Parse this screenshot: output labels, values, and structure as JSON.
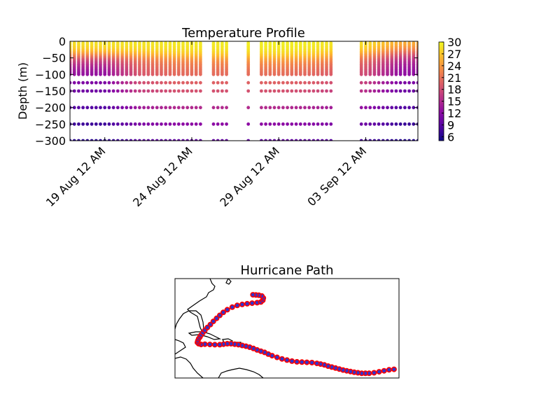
{
  "chart_data": [
    {
      "type": "scatter",
      "title": "Temperature Profile",
      "xlabel": "",
      "ylabel": "Depth (m)",
      "x_range": [
        "2017-08-17",
        "2017-09-06"
      ],
      "ylim": [
        -300,
        0
      ],
      "y_ticks": [
        0,
        -50,
        -100,
        -150,
        -200,
        -250,
        -300
      ],
      "x_ticks": [
        {
          "date": "2017-08-19",
          "label": "19 Aug 12 AM"
        },
        {
          "date": "2017-08-24",
          "label": "24 Aug 12 AM"
        },
        {
          "date": "2017-08-29",
          "label": "29 Aug 12 AM"
        },
        {
          "date": "2017-09-03",
          "label": "03 Sep 12 AM"
        }
      ],
      "colorbar": {
        "colormap": "plasma",
        "range": [
          5,
          30
        ],
        "ticks": [
          30,
          27,
          24,
          21,
          18,
          15,
          12,
          9,
          6
        ]
      },
      "profile_start": "2017-08-17",
      "profile_end": "2017-09-06",
      "profile_step_hours": 6,
      "data_gaps": [
        [
          "2017-08-24T18:00",
          "2017-08-25T06:00"
        ],
        [
          "2017-08-26T06:00",
          "2017-08-27T06:00"
        ],
        [
          "2017-08-27T12:00",
          "2017-08-28T00:00"
        ],
        [
          "2017-09-01T06:00",
          "2017-09-02T18:00"
        ]
      ],
      "depths": [
        -5,
        -10,
        -15,
        -20,
        -25,
        -30,
        -35,
        -40,
        -45,
        -50,
        -55,
        -60,
        -65,
        -70,
        -75,
        -80,
        -85,
        -90,
        -95,
        -100,
        -125,
        -150,
        -200,
        -250,
        -300
      ],
      "temperature_series": [
        {
          "x": "2017-08-17",
          "values": [
            28.5,
            28.3,
            28.0,
            27.6,
            27.0,
            26.2,
            25.0,
            23.6,
            22.0,
            20.5,
            19.0,
            17.8,
            16.8,
            15.9,
            15.2,
            14.6,
            14.1,
            13.7,
            13.3,
            13.0,
            11.5,
            10.5,
            8.7,
            7.5,
            6.4
          ]
        },
        {
          "x": "2017-08-19",
          "values": [
            28.8,
            28.6,
            28.3,
            27.9,
            27.2,
            26.3,
            25.1,
            23.5,
            21.8,
            20.2,
            18.7,
            17.5,
            16.5,
            15.7,
            15.0,
            14.4,
            13.9,
            13.5,
            13.1,
            12.8,
            11.2,
            10.3,
            8.6,
            7.4,
            6.3
          ]
        },
        {
          "x": "2017-08-21",
          "values": [
            29.0,
            28.8,
            28.6,
            28.3,
            27.9,
            27.3,
            26.5,
            25.5,
            24.4,
            23.3,
            22.3,
            21.5,
            20.9,
            20.4,
            20.0,
            19.7,
            19.4,
            19.2,
            19.0,
            18.8,
            18.0,
            16.8,
            13.8,
            11.2,
            9.0
          ]
        },
        {
          "x": "2017-08-23",
          "values": [
            29.2,
            29.0,
            28.8,
            28.6,
            28.3,
            27.9,
            27.4,
            26.7,
            25.8,
            24.8,
            23.9,
            23.1,
            22.5,
            22.0,
            21.6,
            21.3,
            21.0,
            20.8,
            20.6,
            20.4,
            19.6,
            18.4,
            15.0,
            12.2,
            9.5
          ]
        },
        {
          "x": "2017-08-29",
          "values": [
            29.6,
            29.5,
            29.3,
            29.1,
            28.9,
            28.6,
            28.2,
            27.6,
            26.9,
            26.0,
            25.1,
            24.3,
            23.6,
            23.0,
            22.5,
            22.1,
            21.7,
            21.4,
            21.1,
            20.8,
            19.8,
            18.5,
            15.2,
            12.3,
            9.6
          ]
        },
        {
          "x": "2017-08-31",
          "values": [
            29.4,
            29.2,
            29.0,
            28.8,
            28.5,
            28.1,
            27.6,
            27.0,
            26.2,
            25.3,
            24.4,
            23.6,
            22.9,
            22.3,
            21.8,
            21.4,
            21.0,
            20.7,
            20.4,
            20.1,
            19.1,
            17.8,
            14.5,
            11.8,
            9.3
          ]
        },
        {
          "x": "2017-09-03",
          "values": [
            28.4,
            28.2,
            27.9,
            27.5,
            27.0,
            26.3,
            25.4,
            24.3,
            23.2,
            22.2,
            21.3,
            20.6,
            20.0,
            19.5,
            19.1,
            18.8,
            18.5,
            18.2,
            18.0,
            17.8,
            16.8,
            15.5,
            12.6,
            10.2,
            7.8
          ]
        },
        {
          "x": "2017-09-05",
          "values": [
            25.5,
            25.0,
            24.4,
            23.6,
            22.7,
            21.6,
            20.4,
            19.2,
            18.0,
            17.0,
            16.1,
            15.4,
            14.8,
            14.3,
            13.9,
            13.5,
            13.2,
            12.9,
            12.7,
            12.5,
            11.1,
            10.2,
            8.5,
            7.2,
            6.1
          ]
        }
      ]
    },
    {
      "type": "map",
      "title": "Hurricane Path",
      "extent": {
        "lon": [
          -100,
          -10
        ],
        "lat": [
          5,
          45
        ]
      },
      "path_color": "#ff0000",
      "marker_face_color": "#3333cc",
      "track": [
        [
          -12.0,
          8.5
        ],
        [
          -14.0,
          8.3
        ],
        [
          -16.0,
          7.9
        ],
        [
          -18.0,
          7.5
        ],
        [
          -20.0,
          7.1
        ],
        [
          -22.0,
          6.9
        ],
        [
          -23.5,
          6.9
        ],
        [
          -25.0,
          6.9
        ],
        [
          -26.5,
          7.1
        ],
        [
          -28.0,
          7.3
        ],
        [
          -29.5,
          7.6
        ],
        [
          -31.0,
          7.9
        ],
        [
          -32.5,
          8.2
        ],
        [
          -34.0,
          8.6
        ],
        [
          -35.5,
          9.0
        ],
        [
          -37.0,
          9.4
        ],
        [
          -38.5,
          9.8
        ],
        [
          -40.0,
          10.3
        ],
        [
          -41.5,
          10.6
        ],
        [
          -43.0,
          10.9
        ],
        [
          -45.0,
          11.2
        ],
        [
          -47.0,
          11.3
        ],
        [
          -49.0,
          11.4
        ],
        [
          -51.0,
          11.5
        ],
        [
          -53.0,
          11.8
        ],
        [
          -55.0,
          12.2
        ],
        [
          -57.0,
          12.7
        ],
        [
          -59.0,
          13.3
        ],
        [
          -61.0,
          14.0
        ],
        [
          -62.5,
          14.6
        ],
        [
          -64.0,
          15.3
        ],
        [
          -65.5,
          15.8
        ],
        [
          -67.0,
          16.3
        ],
        [
          -68.5,
          16.9
        ],
        [
          -70.0,
          17.4
        ],
        [
          -71.5,
          17.8
        ],
        [
          -73.0,
          18.1
        ],
        [
          -74.5,
          18.4
        ],
        [
          -76.0,
          18.6
        ],
        [
          -77.5,
          18.8
        ],
        [
          -79.0,
          18.8
        ],
        [
          -80.5,
          18.6
        ],
        [
          -82.0,
          18.4
        ],
        [
          -84.0,
          18.4
        ],
        [
          -86.0,
          18.5
        ],
        [
          -88.0,
          18.6
        ],
        [
          -89.5,
          18.5
        ],
        [
          -90.5,
          18.8
        ],
        [
          -91.0,
          19.3
        ],
        [
          -90.8,
          20.0
        ],
        [
          -90.5,
          20.8
        ],
        [
          -90.0,
          21.5
        ],
        [
          -89.5,
          22.3
        ],
        [
          -88.8,
          23.2
        ],
        [
          -88.0,
          24.2
        ],
        [
          -87.0,
          25.3
        ],
        [
          -85.8,
          26.5
        ],
        [
          -84.6,
          27.8
        ],
        [
          -83.3,
          29.0
        ],
        [
          -82.0,
          30.2
        ],
        [
          -80.6,
          31.4
        ],
        [
          -79.0,
          32.5
        ],
        [
          -77.0,
          33.5
        ],
        [
          -75.0,
          34.2
        ],
        [
          -73.0,
          34.6
        ],
        [
          -71.0,
          34.9
        ],
        [
          -69.0,
          35.1
        ],
        [
          -67.0,
          35.3
        ],
        [
          -65.5,
          35.6
        ],
        [
          -64.7,
          36.3
        ],
        [
          -64.5,
          37.2
        ],
        [
          -65.1,
          38.0
        ],
        [
          -66.3,
          38.3
        ],
        [
          -67.5,
          38.4
        ],
        [
          -68.7,
          38.5
        ]
      ]
    }
  ]
}
